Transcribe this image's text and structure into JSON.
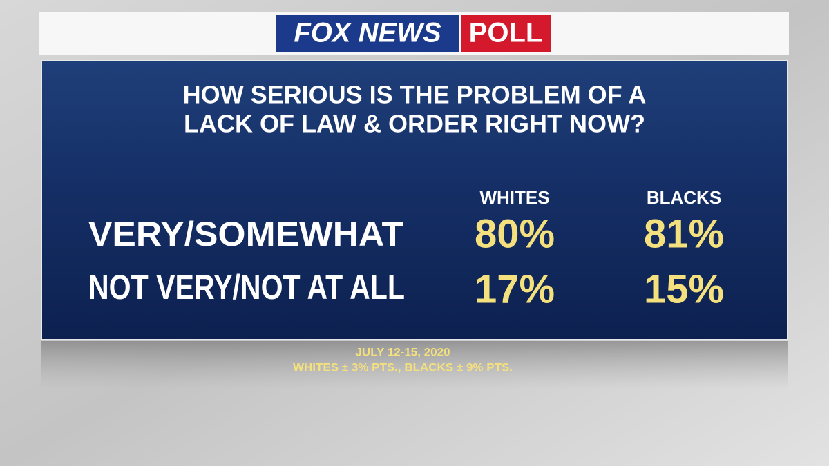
{
  "header": {
    "brand": "FOX NEWS",
    "tag": "POLL"
  },
  "question": {
    "lines": [
      "HOW SERIOUS IS THE PROBLEM OF A",
      "LACK OF LAW & ORDER RIGHT NOW?"
    ]
  },
  "table": {
    "columns": [
      "WHITES",
      "BLACKS"
    ],
    "rows": [
      {
        "label": "VERY/SOMEWHAT",
        "values": [
          "80%",
          "81%"
        ]
      },
      {
        "label": "NOT VERY/NOT AT ALL",
        "values": [
          "17%",
          "15%"
        ]
      }
    ]
  },
  "footer": {
    "lines": [
      "JULY 12-15, 2020",
      "WHITES ± 3% PTS., BLACKS ± 9% PTS."
    ]
  }
}
